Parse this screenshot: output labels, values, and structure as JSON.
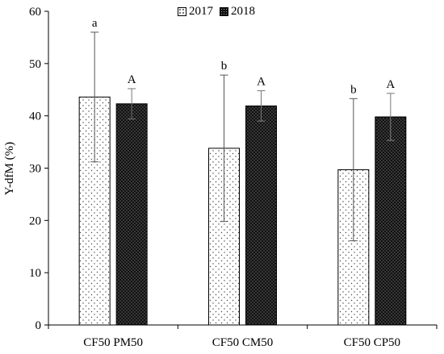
{
  "chart_data": {
    "type": "bar",
    "ylabel": "Y-dfM (%)",
    "xlabel": "",
    "ylim": [
      0,
      60
    ],
    "yticks": [
      0,
      10,
      20,
      30,
      40,
      50,
      60
    ],
    "categories": [
      "CF50 PM50",
      "CF50 CM50",
      "CF50 CP50"
    ],
    "legend_position": "top-center",
    "series": [
      {
        "name": "2017",
        "pattern": "dotted-light",
        "values": [
          43.6,
          33.8,
          29.7
        ],
        "error_upper": [
          56.0,
          47.8,
          43.3
        ],
        "error_lower": [
          31.2,
          19.8,
          16.1
        ],
        "letters": [
          "a",
          "b",
          "b"
        ]
      },
      {
        "name": "2018",
        "pattern": "dense-dark",
        "values": [
          42.3,
          41.9,
          39.8
        ],
        "error_upper": [
          45.2,
          44.8,
          44.3
        ],
        "error_lower": [
          39.4,
          39.0,
          35.3
        ],
        "letters": [
          "A",
          "A",
          "A"
        ]
      }
    ]
  }
}
